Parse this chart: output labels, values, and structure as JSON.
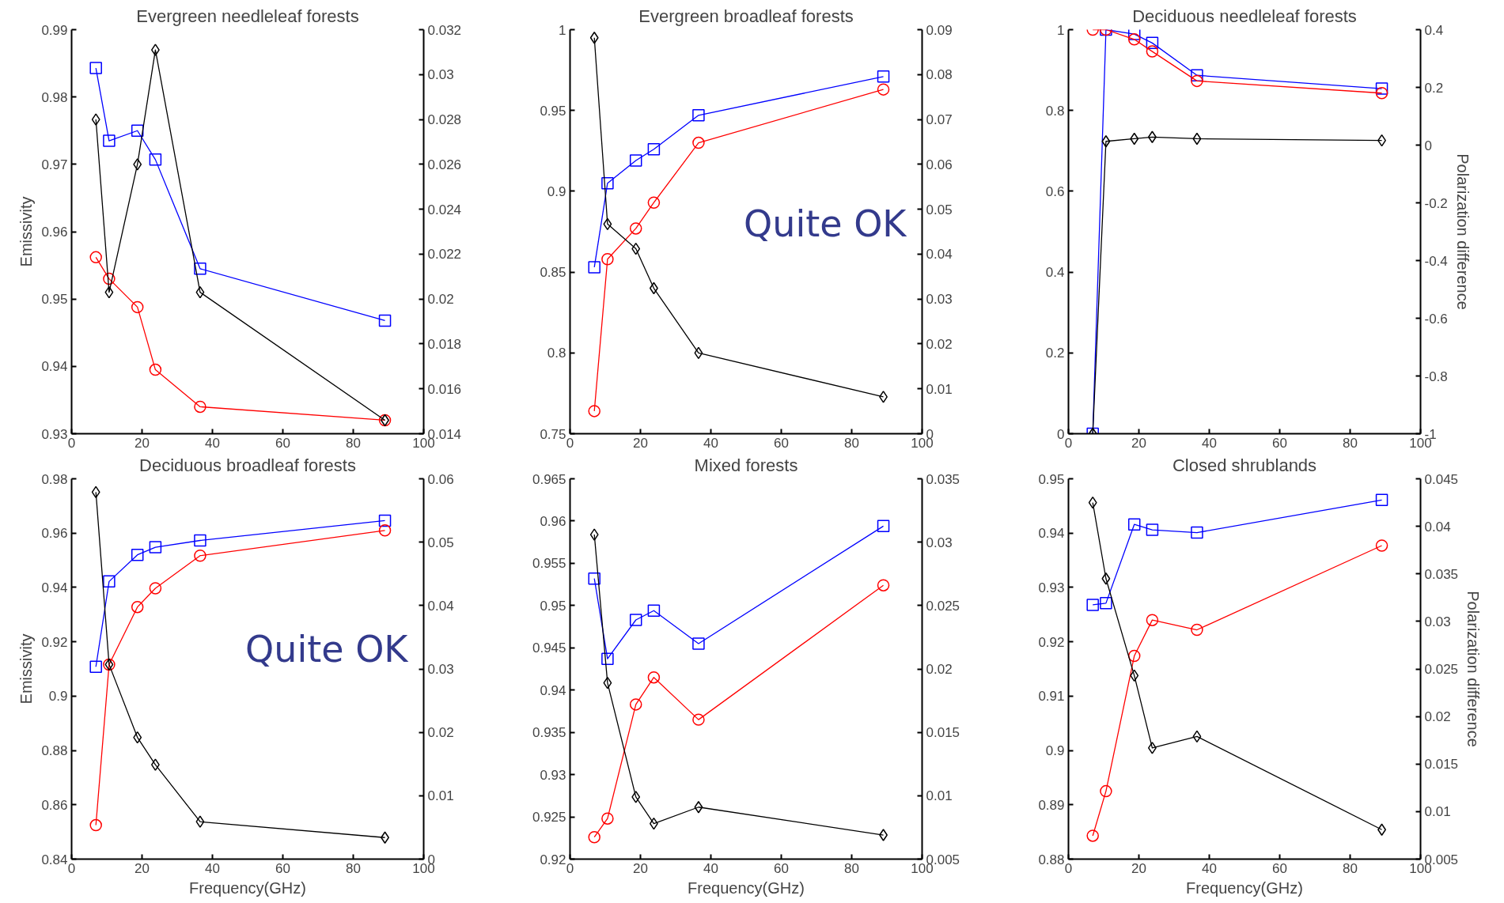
{
  "chart_data": [
    {
      "type": "line",
      "title": "Evergreen needleleaf forests",
      "ylabel": "Emissivity",
      "x": [
        6.9,
        10.65,
        18.7,
        23.8,
        36.5,
        89
      ],
      "xlim": [
        0,
        100
      ],
      "xticks": [
        0,
        20,
        40,
        60,
        80,
        100
      ],
      "ylim": [
        0.93,
        0.99
      ],
      "yticks": [
        0.93,
        0.94,
        0.95,
        0.96,
        0.97,
        0.98,
        0.99
      ],
      "y2lim": [
        0.014,
        0.032
      ],
      "y2ticks": [
        0.014,
        0.016,
        0.018,
        0.02,
        0.022,
        0.024,
        0.026,
        0.028,
        0.03,
        0.032
      ],
      "series": [
        {
          "color": "#0000ff",
          "marker": "square",
          "values": [
            0.9843,
            0.9735,
            0.975,
            0.9707,
            0.9545,
            0.9468
          ]
        },
        {
          "color": "#ff0000",
          "marker": "circle",
          "values": [
            0.9562,
            0.953,
            0.9488,
            0.9395,
            0.934,
            0.932
          ]
        },
        {
          "color": "#000000",
          "marker": "diamond",
          "axis": "y2",
          "values": [
            0.028,
            0.0203,
            0.026,
            0.0311,
            0.0203,
            0.0146
          ]
        }
      ]
    },
    {
      "type": "line",
      "title": "Evergreen broadleaf forests",
      "x": [
        6.9,
        10.65,
        18.7,
        23.8,
        36.5,
        89
      ],
      "xlim": [
        0,
        100
      ],
      "xticks": [
        0,
        20,
        40,
        60,
        80,
        100
      ],
      "ylim": [
        0.75,
        1
      ],
      "yticks": [
        0.75,
        0.8,
        0.85,
        0.9,
        0.95,
        1
      ],
      "y2lim": [
        0,
        0.09
      ],
      "y2ticks": [
        0,
        0.01,
        0.02,
        0.03,
        0.04,
        0.05,
        0.06,
        0.07,
        0.08,
        0.09
      ],
      "annotations": [
        "Quite OK"
      ],
      "series": [
        {
          "color": "#0000ff",
          "marker": "square",
          "values": [
            0.853,
            0.905,
            0.919,
            0.926,
            0.947,
            0.971
          ]
        },
        {
          "color": "#ff0000",
          "marker": "circle",
          "values": [
            0.764,
            0.858,
            0.877,
            0.893,
            0.93,
            0.963
          ]
        },
        {
          "color": "#000000",
          "marker": "diamond",
          "axis": "y2",
          "values": [
            0.0882,
            0.0467,
            0.0412,
            0.0324,
            0.018,
            0.0082
          ]
        }
      ]
    },
    {
      "type": "line",
      "title": "Deciduous needleleaf forests",
      "y2label": "Polarization difference",
      "x": [
        6.9,
        10.65,
        18.7,
        23.8,
        36.5,
        89
      ],
      "xlim": [
        0,
        100
      ],
      "xticks": [
        0,
        20,
        40,
        60,
        80,
        100
      ],
      "ylim": [
        0,
        1
      ],
      "yticks": [
        0,
        0.2,
        0.4,
        0.6,
        0.8,
        1
      ],
      "y2lim": [
        -1,
        0.4
      ],
      "y2ticks": [
        -1,
        -0.8,
        -0.6,
        -0.4,
        -0.2,
        0,
        0.2,
        0.4
      ],
      "series": [
        {
          "color": "#0000ff",
          "marker": "square",
          "values": [
            0,
            1.0,
            0.989,
            0.967,
            0.887,
            0.854
          ]
        },
        {
          "color": "#ff0000",
          "marker": "circle",
          "values": [
            1.0,
            1.0,
            0.976,
            0.946,
            0.873,
            0.843
          ]
        },
        {
          "color": "#000000",
          "marker": "diamond",
          "axis": "y2",
          "values": [
            -1,
            0.013,
            0.022,
            0.028,
            0.022,
            0.016
          ]
        }
      ]
    },
    {
      "type": "line",
      "title": "Deciduous broadleaf forests",
      "xlabel": "Frequency(GHz)",
      "ylabel": "Emissivity",
      "x": [
        6.9,
        10.65,
        18.7,
        23.8,
        36.5,
        89
      ],
      "xlim": [
        0,
        100
      ],
      "xticks": [
        0,
        20,
        40,
        60,
        80,
        100
      ],
      "ylim": [
        0.84,
        0.98
      ],
      "yticks": [
        0.84,
        0.86,
        0.88,
        0.9,
        0.92,
        0.94,
        0.96,
        0.98
      ],
      "y2lim": [
        0,
        0.06
      ],
      "y2ticks": [
        0,
        0.01,
        0.02,
        0.03,
        0.04,
        0.05,
        0.06
      ],
      "annotations": [
        "Quite OK"
      ],
      "series": [
        {
          "color": "#0000ff",
          "marker": "square",
          "values": [
            0.9108,
            0.9422,
            0.952,
            0.9548,
            0.9573,
            0.9646
          ]
        },
        {
          "color": "#ff0000",
          "marker": "circle",
          "values": [
            0.8525,
            0.9116,
            0.9328,
            0.9397,
            0.9517,
            0.961
          ]
        },
        {
          "color": "#000000",
          "marker": "diamond",
          "axis": "y2",
          "values": [
            0.0579,
            0.0307,
            0.0192,
            0.0149,
            0.0059,
            0.0034
          ]
        }
      ]
    },
    {
      "type": "line",
      "title": "Mixed forests",
      "xlabel": "Frequency(GHz)",
      "x": [
        6.9,
        10.65,
        18.7,
        23.8,
        36.5,
        89
      ],
      "xlim": [
        0,
        100
      ],
      "xticks": [
        0,
        20,
        40,
        60,
        80,
        100
      ],
      "ylim": [
        0.92,
        0.965
      ],
      "yticks": [
        0.92,
        0.925,
        0.93,
        0.935,
        0.94,
        0.945,
        0.95,
        0.955,
        0.96,
        0.965
      ],
      "y2lim": [
        0.005,
        0.035
      ],
      "y2ticks": [
        0.005,
        0.01,
        0.015,
        0.02,
        0.025,
        0.03,
        0.035
      ],
      "series": [
        {
          "color": "#0000ff",
          "marker": "square",
          "values": [
            0.9532,
            0.9437,
            0.9483,
            0.9494,
            0.9455,
            0.9594
          ]
        },
        {
          "color": "#ff0000",
          "marker": "circle",
          "values": [
            0.9226,
            0.9248,
            0.9383,
            0.9415,
            0.9365,
            0.9524
          ]
        },
        {
          "color": "#000000",
          "marker": "diamond",
          "axis": "y2",
          "values": [
            0.0306,
            0.0189,
            0.0099,
            0.0078,
            0.0091,
            0.0069
          ]
        }
      ]
    },
    {
      "type": "line",
      "title": "Closed shrublands",
      "xlabel": "Frequency(GHz)",
      "y2label": "Polarization difference",
      "x": [
        6.9,
        10.65,
        18.7,
        23.8,
        36.5,
        89
      ],
      "xlim": [
        0,
        100
      ],
      "xticks": [
        0,
        20,
        40,
        60,
        80,
        100
      ],
      "ylim": [
        0.88,
        0.95
      ],
      "yticks": [
        0.88,
        0.89,
        0.9,
        0.91,
        0.92,
        0.93,
        0.94,
        0.95
      ],
      "y2lim": [
        0.005,
        0.045
      ],
      "y2ticks": [
        0.005,
        0.01,
        0.015,
        0.02,
        0.025,
        0.03,
        0.035,
        0.04,
        0.045
      ],
      "series": [
        {
          "color": "#0000ff",
          "marker": "square",
          "values": [
            0.9268,
            0.9271,
            0.9416,
            0.9406,
            0.9401,
            0.9461
          ]
        },
        {
          "color": "#ff0000",
          "marker": "circle",
          "values": [
            0.8843,
            0.8925,
            0.9174,
            0.924,
            0.9222,
            0.9377
          ]
        },
        {
          "color": "#000000",
          "marker": "diamond",
          "axis": "y2",
          "values": [
            0.0425,
            0.0345,
            0.0243,
            0.0167,
            0.0179,
            0.0081
          ]
        }
      ]
    }
  ]
}
